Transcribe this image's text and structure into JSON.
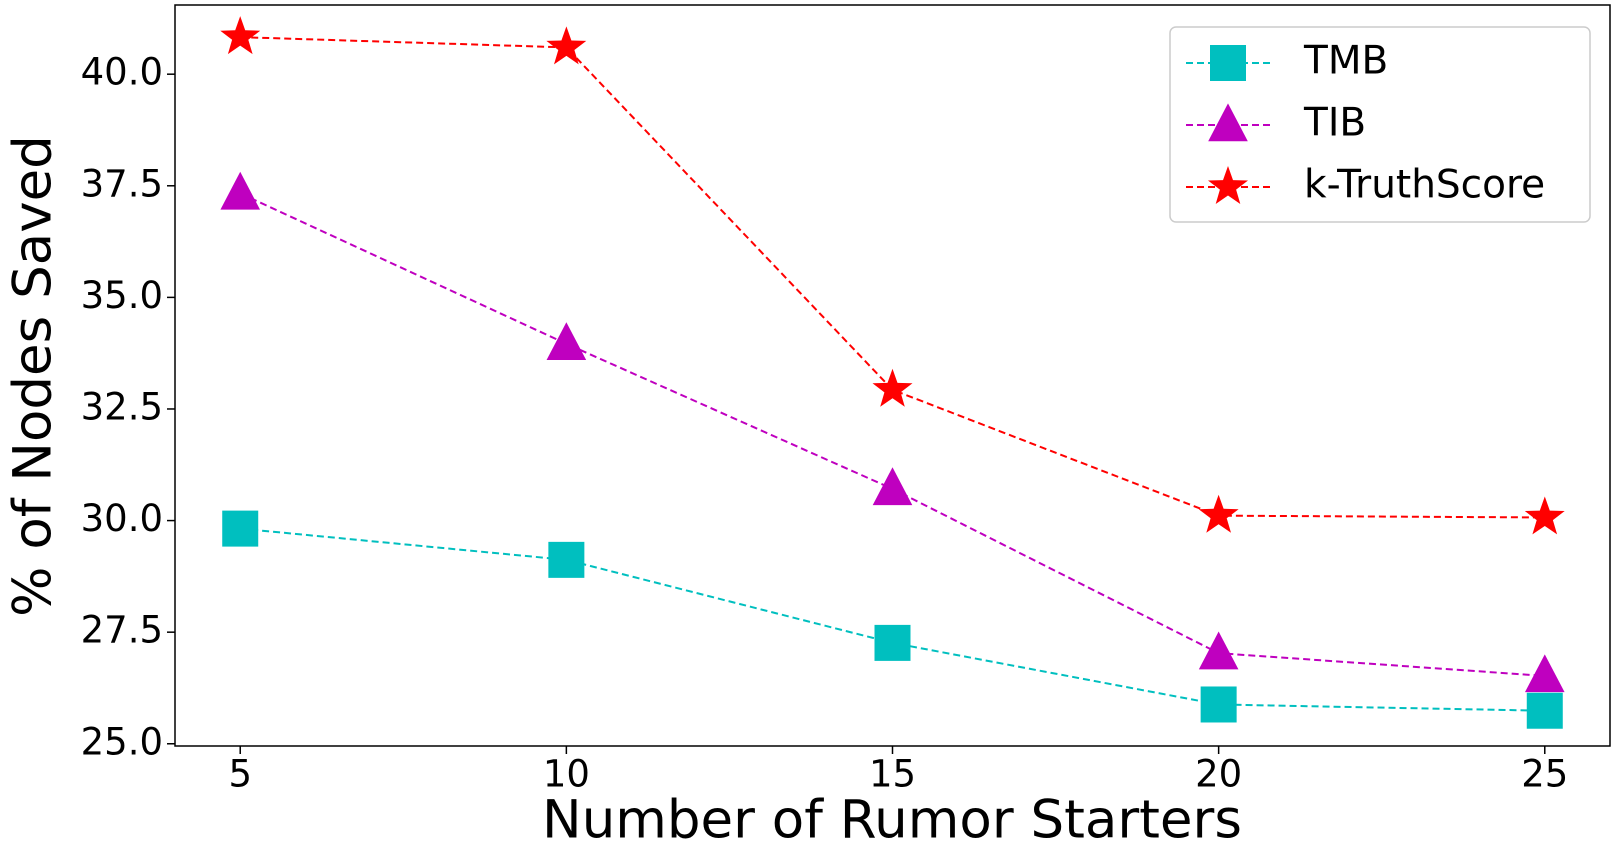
{
  "chart_data": {
    "type": "line",
    "x_label": "Number of Rumor Starters",
    "y_label": "% of Nodes Saved",
    "x": [
      5,
      10,
      15,
      20,
      25
    ],
    "series": [
      {
        "name": "TMB",
        "color": "#00bfbf",
        "marker": "square",
        "values": [
          29.82,
          29.12,
          27.26,
          25.88,
          25.74
        ]
      },
      {
        "name": "TIB",
        "color": "#bf00bf",
        "marker": "triangle",
        "values": [
          37.33,
          33.96,
          30.71,
          27.03,
          26.52
        ]
      },
      {
        "name": "k-TruthScore",
        "color": "#ff0000",
        "marker": "star",
        "values": [
          40.83,
          40.6,
          32.93,
          30.11,
          30.07
        ]
      }
    ],
    "xlim": [
      4.0,
      26.0
    ],
    "ylim": [
      24.95,
      41.55
    ],
    "xticks": [
      5,
      10,
      15,
      20,
      25
    ],
    "yticks": [
      {
        "value": 25,
        "label": "25.0"
      },
      {
        "value": 27.5,
        "label": "27.5"
      },
      {
        "value": 30,
        "label": "30.0"
      },
      {
        "value": 32.5,
        "label": "32.5"
      },
      {
        "value": 35,
        "label": "35.0"
      },
      {
        "value": 37.5,
        "label": "37.5"
      },
      {
        "value": 40,
        "label": "40.0"
      }
    ],
    "legend": "upper right"
  }
}
